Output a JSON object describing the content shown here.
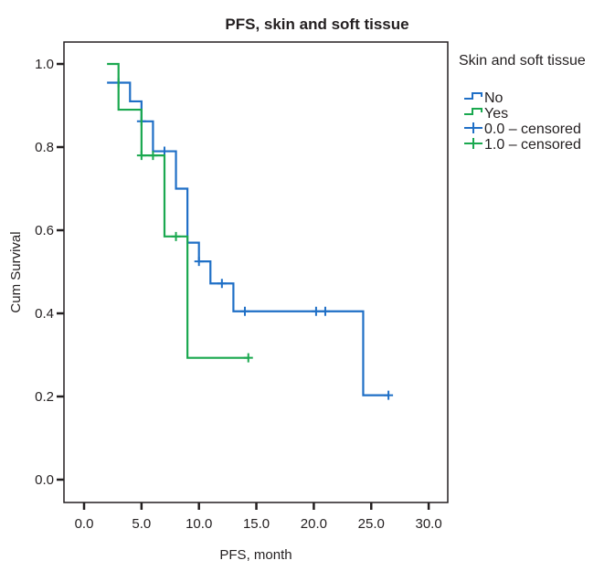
{
  "chart_data": {
    "type": "line",
    "subtype": "kaplan-meier",
    "title": "PFS, skin and soft tissue",
    "xlabel": "PFS, month",
    "ylabel": "Cum Survival",
    "xlim": [
      -1,
      30.5
    ],
    "ylim": [
      -0.03,
      1.1
    ],
    "xticks": [
      0,
      5,
      10,
      15,
      20,
      25,
      30
    ],
    "xtick_labels": [
      "0.0",
      "5.0",
      "10.0",
      "15.0",
      "20.0",
      "25.0",
      "30.0"
    ],
    "yticks": [
      0,
      0.2,
      0.4,
      0.6,
      0.8,
      1.0
    ],
    "ytick_labels": [
      "0.0",
      "0.2",
      "0.4",
      "0.6",
      "0.8",
      "1.0"
    ],
    "grid": false,
    "legend": {
      "title": "Skin and soft tissue",
      "placement": "right",
      "entries": [
        {
          "label": "No",
          "kind": "step",
          "color": "#1f6fc6"
        },
        {
          "label": "Yes",
          "kind": "step",
          "color": "#1aa84f"
        },
        {
          "label": "0.0 – censored",
          "kind": "censor",
          "color": "#1f6fc6"
        },
        {
          "label": "1.0 – censored",
          "kind": "censor",
          "color": "#1aa84f"
        }
      ]
    },
    "series": [
      {
        "name": "No",
        "color": "#1f6fc6",
        "steps": [
          {
            "x": 2.0,
            "y": 0.955
          },
          {
            "x": 4.0,
            "y": 0.91
          },
          {
            "x": 5.0,
            "y": 0.862
          },
          {
            "x": 6.0,
            "y": 0.79
          },
          {
            "x": 8.0,
            "y": 0.7
          },
          {
            "x": 9.0,
            "y": 0.57
          },
          {
            "x": 10.0,
            "y": 0.525
          },
          {
            "x": 11.0,
            "y": 0.472
          },
          {
            "x": 13.0,
            "y": 0.405
          },
          {
            "x": 24.3,
            "y": 0.203
          }
        ],
        "end_x": 26.5,
        "censored": [
          {
            "x": 3.0,
            "y": 0.955
          },
          {
            "x": 5.0,
            "y": 0.862
          },
          {
            "x": 7.0,
            "y": 0.79
          },
          {
            "x": 10.0,
            "y": 0.525
          },
          {
            "x": 12.0,
            "y": 0.472
          },
          {
            "x": 14.0,
            "y": 0.405
          },
          {
            "x": 20.2,
            "y": 0.405
          },
          {
            "x": 21.0,
            "y": 0.405
          },
          {
            "x": 26.5,
            "y": 0.203
          }
        ]
      },
      {
        "name": "Yes",
        "color": "#1aa84f",
        "steps": [
          {
            "x": 2.0,
            "y": 1.0
          },
          {
            "x": 3.0,
            "y": 0.89
          },
          {
            "x": 5.0,
            "y": 0.78
          },
          {
            "x": 7.0,
            "y": 0.585
          },
          {
            "x": 9.0,
            "y": 0.293
          }
        ],
        "end_x": 14.3,
        "censored": [
          {
            "x": 5.0,
            "y": 0.78
          },
          {
            "x": 6.0,
            "y": 0.78
          },
          {
            "x": 8.0,
            "y": 0.585
          },
          {
            "x": 14.3,
            "y": 0.293
          }
        ]
      }
    ]
  }
}
